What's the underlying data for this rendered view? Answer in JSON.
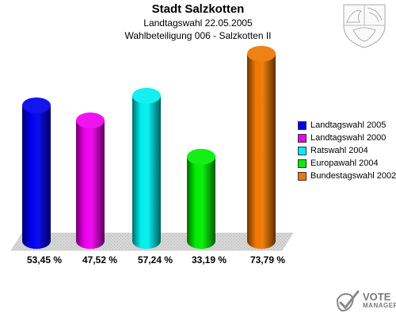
{
  "header": {
    "title": "Stadt Salzkotten",
    "subtitle1": "Landtagswahl 22.05.2005",
    "subtitle2": "Wahlbeteiligung 006 - Salzkotten II"
  },
  "chart_data": {
    "type": "bar",
    "categories": [
      "Landtagswahl 2005",
      "Landtagswahl 2000",
      "Ratswahl 2004",
      "Europawahl 2004",
      "Bundestagswahl 2002"
    ],
    "values": [
      53.45,
      47.52,
      57.24,
      33.19,
      73.79
    ],
    "value_labels": [
      "53,45 %",
      "47,52 %",
      "57,24 %",
      "33,19 %",
      "73,79 %"
    ],
    "colors": [
      "#0000ee",
      "#ee00ee",
      "#00eeee",
      "#00ee00",
      "#ee7700"
    ],
    "legend_position": "right",
    "grid": false
  },
  "legend": {
    "items": [
      "Landtagswahl 2005",
      "Landtagswahl 2000",
      "Ratswahl 2004",
      "Europawahl 2004",
      "Bundestagswahl 2002"
    ]
  },
  "branding": {
    "line1": "VOTE",
    "line2": "MANAGER",
    "crest_icon": "nrw-coat-of-arms-icon",
    "logo_icon": "vote-manager-logo-icon"
  }
}
